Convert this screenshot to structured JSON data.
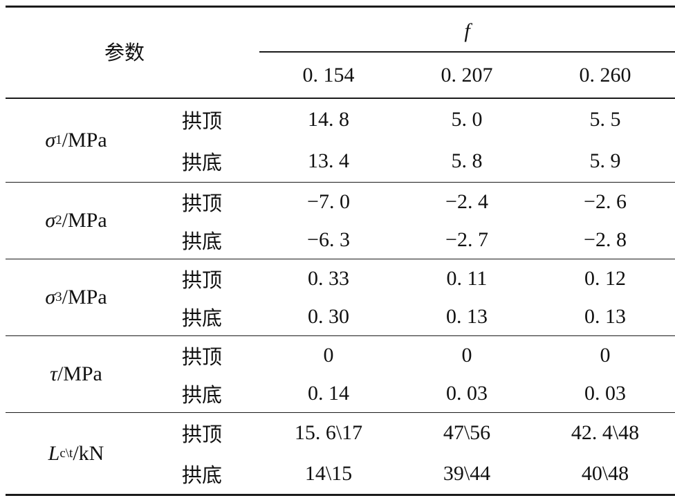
{
  "table": {
    "param_header": "参数",
    "f_symbol": "f",
    "columns": [
      "0. 154",
      "0. 207",
      "0. 260"
    ],
    "groups": [
      {
        "symbol": "σ",
        "sub": "1",
        "unit": "/MPa",
        "rows": [
          {
            "pos": "拱顶",
            "values": [
              "14. 8",
              "5. 0",
              "5. 5"
            ]
          },
          {
            "pos": "拱底",
            "values": [
              "13. 4",
              "5. 8",
              "5. 9"
            ]
          }
        ]
      },
      {
        "symbol": "σ",
        "sub": "2",
        "unit": "/MPa",
        "rows": [
          {
            "pos": "拱顶",
            "values": [
              "−7. 0",
              "−2. 4",
              "−2. 6"
            ]
          },
          {
            "pos": "拱底",
            "values": [
              "−6. 3",
              "−2. 7",
              "−2. 8"
            ]
          }
        ]
      },
      {
        "symbol": "σ",
        "sub": "3",
        "unit": "/MPa",
        "rows": [
          {
            "pos": "拱顶",
            "values": [
              "0. 33",
              "0. 11",
              "0. 12"
            ]
          },
          {
            "pos": "拱底",
            "values": [
              "0. 30",
              "0. 13",
              "0. 13"
            ]
          }
        ]
      },
      {
        "symbol": "τ",
        "sub": "",
        "unit": "/MPa",
        "rows": [
          {
            "pos": "拱顶",
            "values": [
              "0",
              "0",
              "0"
            ]
          },
          {
            "pos": "拱底",
            "values": [
              "0. 14",
              "0. 03",
              "0. 03"
            ]
          }
        ]
      },
      {
        "symbol": "L",
        "sub": "c\\t",
        "unit": "/kN",
        "rows": [
          {
            "pos": "拱顶",
            "values": [
              "15. 6\\17",
              "47\\56",
              "42. 4\\48"
            ]
          },
          {
            "pos": "拱底",
            "values": [
              "14\\15",
              "39\\44",
              "40\\48"
            ]
          }
        ]
      }
    ]
  }
}
